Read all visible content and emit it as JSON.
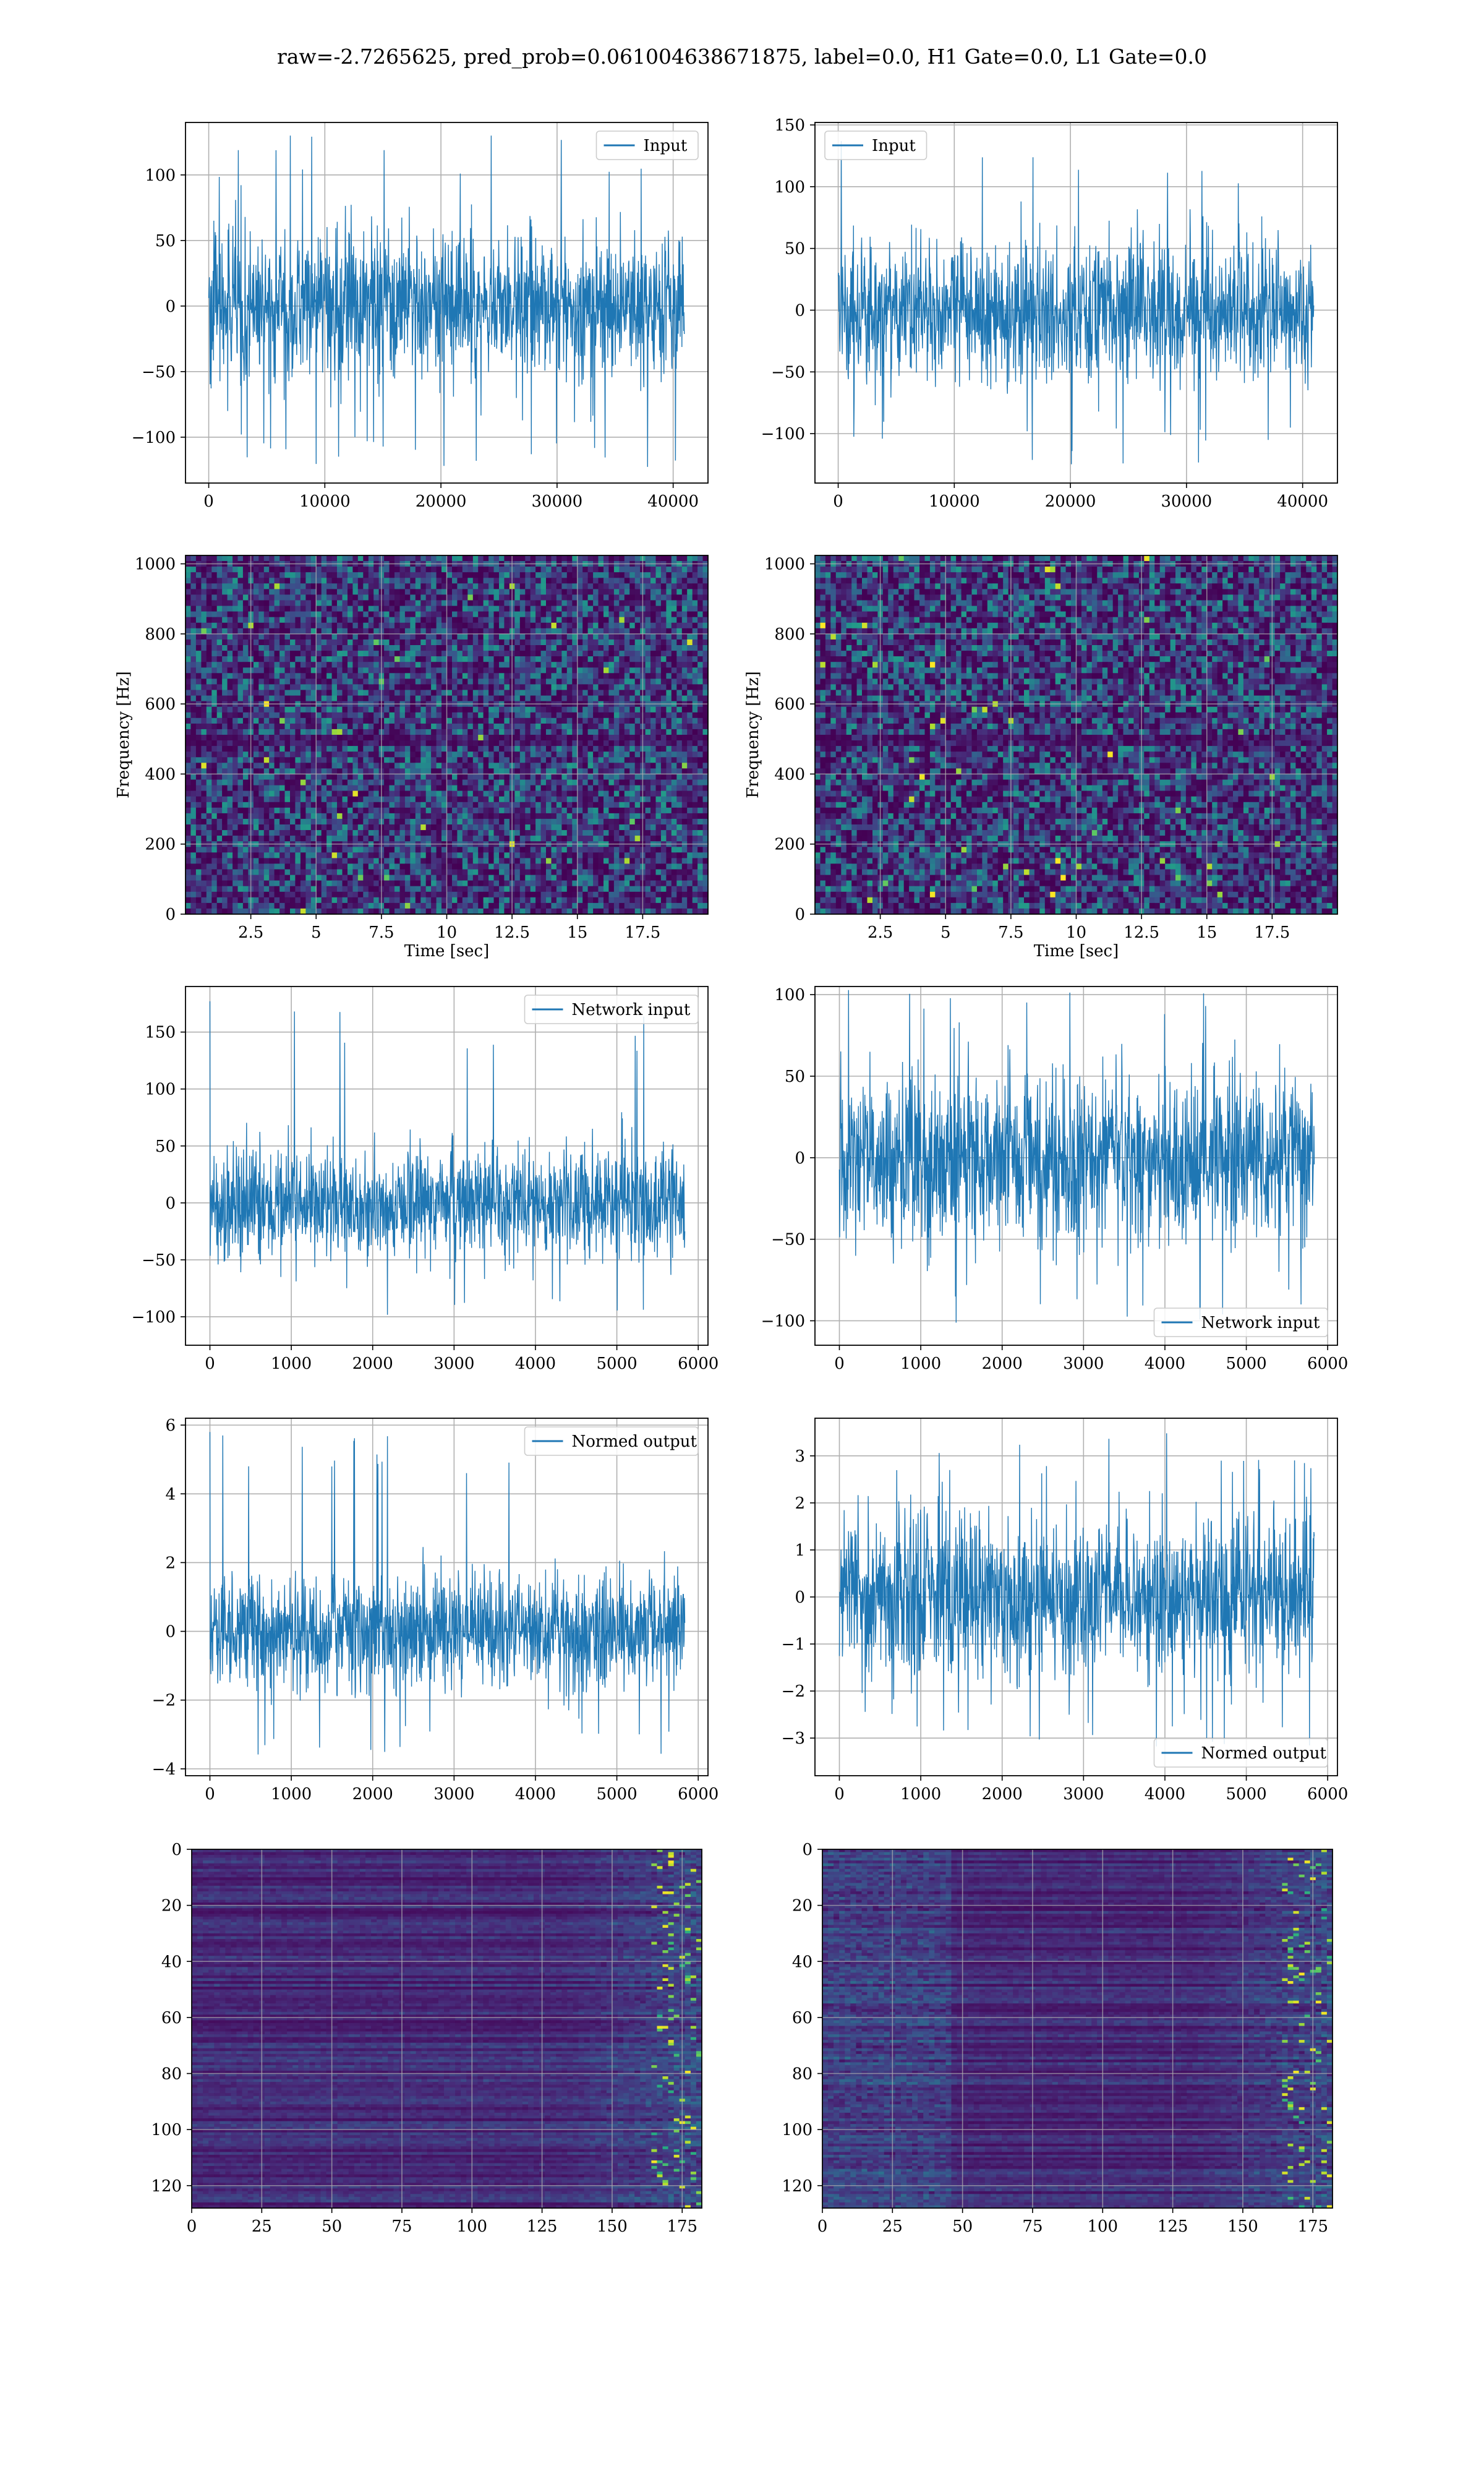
{
  "figure_title": "raw=-2.7265625, pred_prob=0.061004638671875, label=0.0, H1 Gate=0.0, L1 Gate=0.0",
  "colors": {
    "line": "#1f77b4",
    "grid": "#b0b0b0",
    "viridis": [
      "#440154",
      "#472c7a",
      "#3b518b",
      "#2c718e",
      "#21908d",
      "#27ad81",
      "#5cc863",
      "#aadc32",
      "#fde725"
    ]
  },
  "chart_data": [
    {
      "id": "raw-h1",
      "type": "line",
      "legend": "Input",
      "legend_loc": "upper right",
      "xlim": [
        -2000,
        43000
      ],
      "ylim": [
        -135,
        140
      ],
      "xticks": [
        0,
        10000,
        20000,
        30000,
        40000
      ],
      "yticks": [
        -100,
        -50,
        0,
        50,
        100
      ],
      "n_points": 40960,
      "approx_std": 28,
      "approx_peak_range": [
        -125,
        130
      ],
      "grid": true
    },
    {
      "id": "raw-l1",
      "type": "line",
      "legend": "Input",
      "legend_loc": "upper left",
      "xlim": [
        -2000,
        43000
      ],
      "ylim": [
        -140,
        152
      ],
      "xticks": [
        0,
        10000,
        20000,
        30000,
        40000
      ],
      "yticks": [
        -100,
        -50,
        0,
        50,
        100,
        150
      ],
      "n_points": 40960,
      "approx_std": 28,
      "approx_peak_range": [
        -125,
        137
      ],
      "grid": true
    },
    {
      "id": "spec-h1",
      "type": "heatmap",
      "xlabel": "Time [sec]",
      "ylabel": "Frequency [Hz]",
      "xlim": [
        0,
        20
      ],
      "ylim": [
        0,
        1024
      ],
      "xticks": [
        2.5,
        5.0,
        7.5,
        10.0,
        12.5,
        15.0,
        17.5
      ],
      "yticks": [
        0,
        200,
        400,
        600,
        800,
        1000
      ],
      "colormap": "viridis",
      "grid": true
    },
    {
      "id": "spec-l1",
      "type": "heatmap",
      "xlabel": "Time [sec]",
      "ylabel": "Frequency [Hz]",
      "xlim": [
        0,
        20
      ],
      "ylim": [
        0,
        1024
      ],
      "xticks": [
        2.5,
        5.0,
        7.5,
        10.0,
        12.5,
        15.0,
        17.5
      ],
      "yticks": [
        0,
        200,
        400,
        600,
        800,
        1000
      ],
      "colormap": "viridis",
      "grid": true
    },
    {
      "id": "net-h1",
      "type": "line",
      "legend": "Network input",
      "legend_loc": "upper right",
      "xlim": [
        -300,
        6120
      ],
      "ylim": [
        -125,
        190
      ],
      "xticks": [
        0,
        1000,
        2000,
        3000,
        4000,
        5000,
        6000
      ],
      "yticks": [
        -100,
        -50,
        0,
        50,
        100,
        150
      ],
      "n_points": 5835,
      "approx_std": 24,
      "approx_peak_range": [
        -110,
        177
      ],
      "grid": true
    },
    {
      "id": "net-l1",
      "type": "line",
      "legend": "Network input",
      "legend_loc": "lower right",
      "xlim": [
        -300,
        6120
      ],
      "ylim": [
        -115,
        105
      ],
      "xticks": [
        0,
        1000,
        2000,
        3000,
        4000,
        5000,
        6000
      ],
      "yticks": [
        -100,
        -50,
        0,
        50,
        100
      ],
      "n_points": 5835,
      "approx_std": 26,
      "approx_peak_range": [
        -103,
        105
      ],
      "grid": true
    },
    {
      "id": "norm-h1",
      "type": "line",
      "legend": "Normed output",
      "legend_loc": "upper right",
      "xlim": [
        -300,
        6120
      ],
      "ylim": [
        -4.2,
        6.2
      ],
      "xticks": [
        0,
        1000,
        2000,
        3000,
        4000,
        5000,
        6000
      ],
      "yticks": [
        -4,
        -2,
        0,
        2,
        4,
        6
      ],
      "n_points": 5835,
      "approx_std": 0.8,
      "approx_peak_range": [
        -3.6,
        5.8
      ],
      "grid": true
    },
    {
      "id": "norm-l1",
      "type": "line",
      "legend": "Normed output",
      "legend_loc": "lower right",
      "xlim": [
        -300,
        6120
      ],
      "ylim": [
        -3.8,
        3.8
      ],
      "xticks": [
        0,
        1000,
        2000,
        3000,
        4000,
        5000,
        6000
      ],
      "yticks": [
        -3,
        -2,
        -1,
        0,
        1,
        2,
        3
      ],
      "n_points": 5835,
      "approx_std": 0.9,
      "approx_peak_range": [
        -3.3,
        3.5
      ],
      "grid": true
    },
    {
      "id": "feat-h1",
      "type": "heatmap",
      "xlim": [
        0,
        182
      ],
      "ylim": [
        128,
        0
      ],
      "xticks": [
        0,
        25,
        50,
        75,
        100,
        125,
        150,
        175
      ],
      "yticks": [
        0,
        20,
        40,
        60,
        80,
        100,
        120
      ],
      "colormap": "viridis",
      "grid": true
    },
    {
      "id": "feat-l1",
      "type": "heatmap",
      "xlim": [
        0,
        182
      ],
      "ylim": [
        128,
        0
      ],
      "xticks": [
        0,
        25,
        50,
        75,
        100,
        125,
        150,
        175
      ],
      "yticks": [
        0,
        20,
        40,
        60,
        80,
        100,
        120
      ],
      "colormap": "viridis",
      "grid": true
    }
  ]
}
